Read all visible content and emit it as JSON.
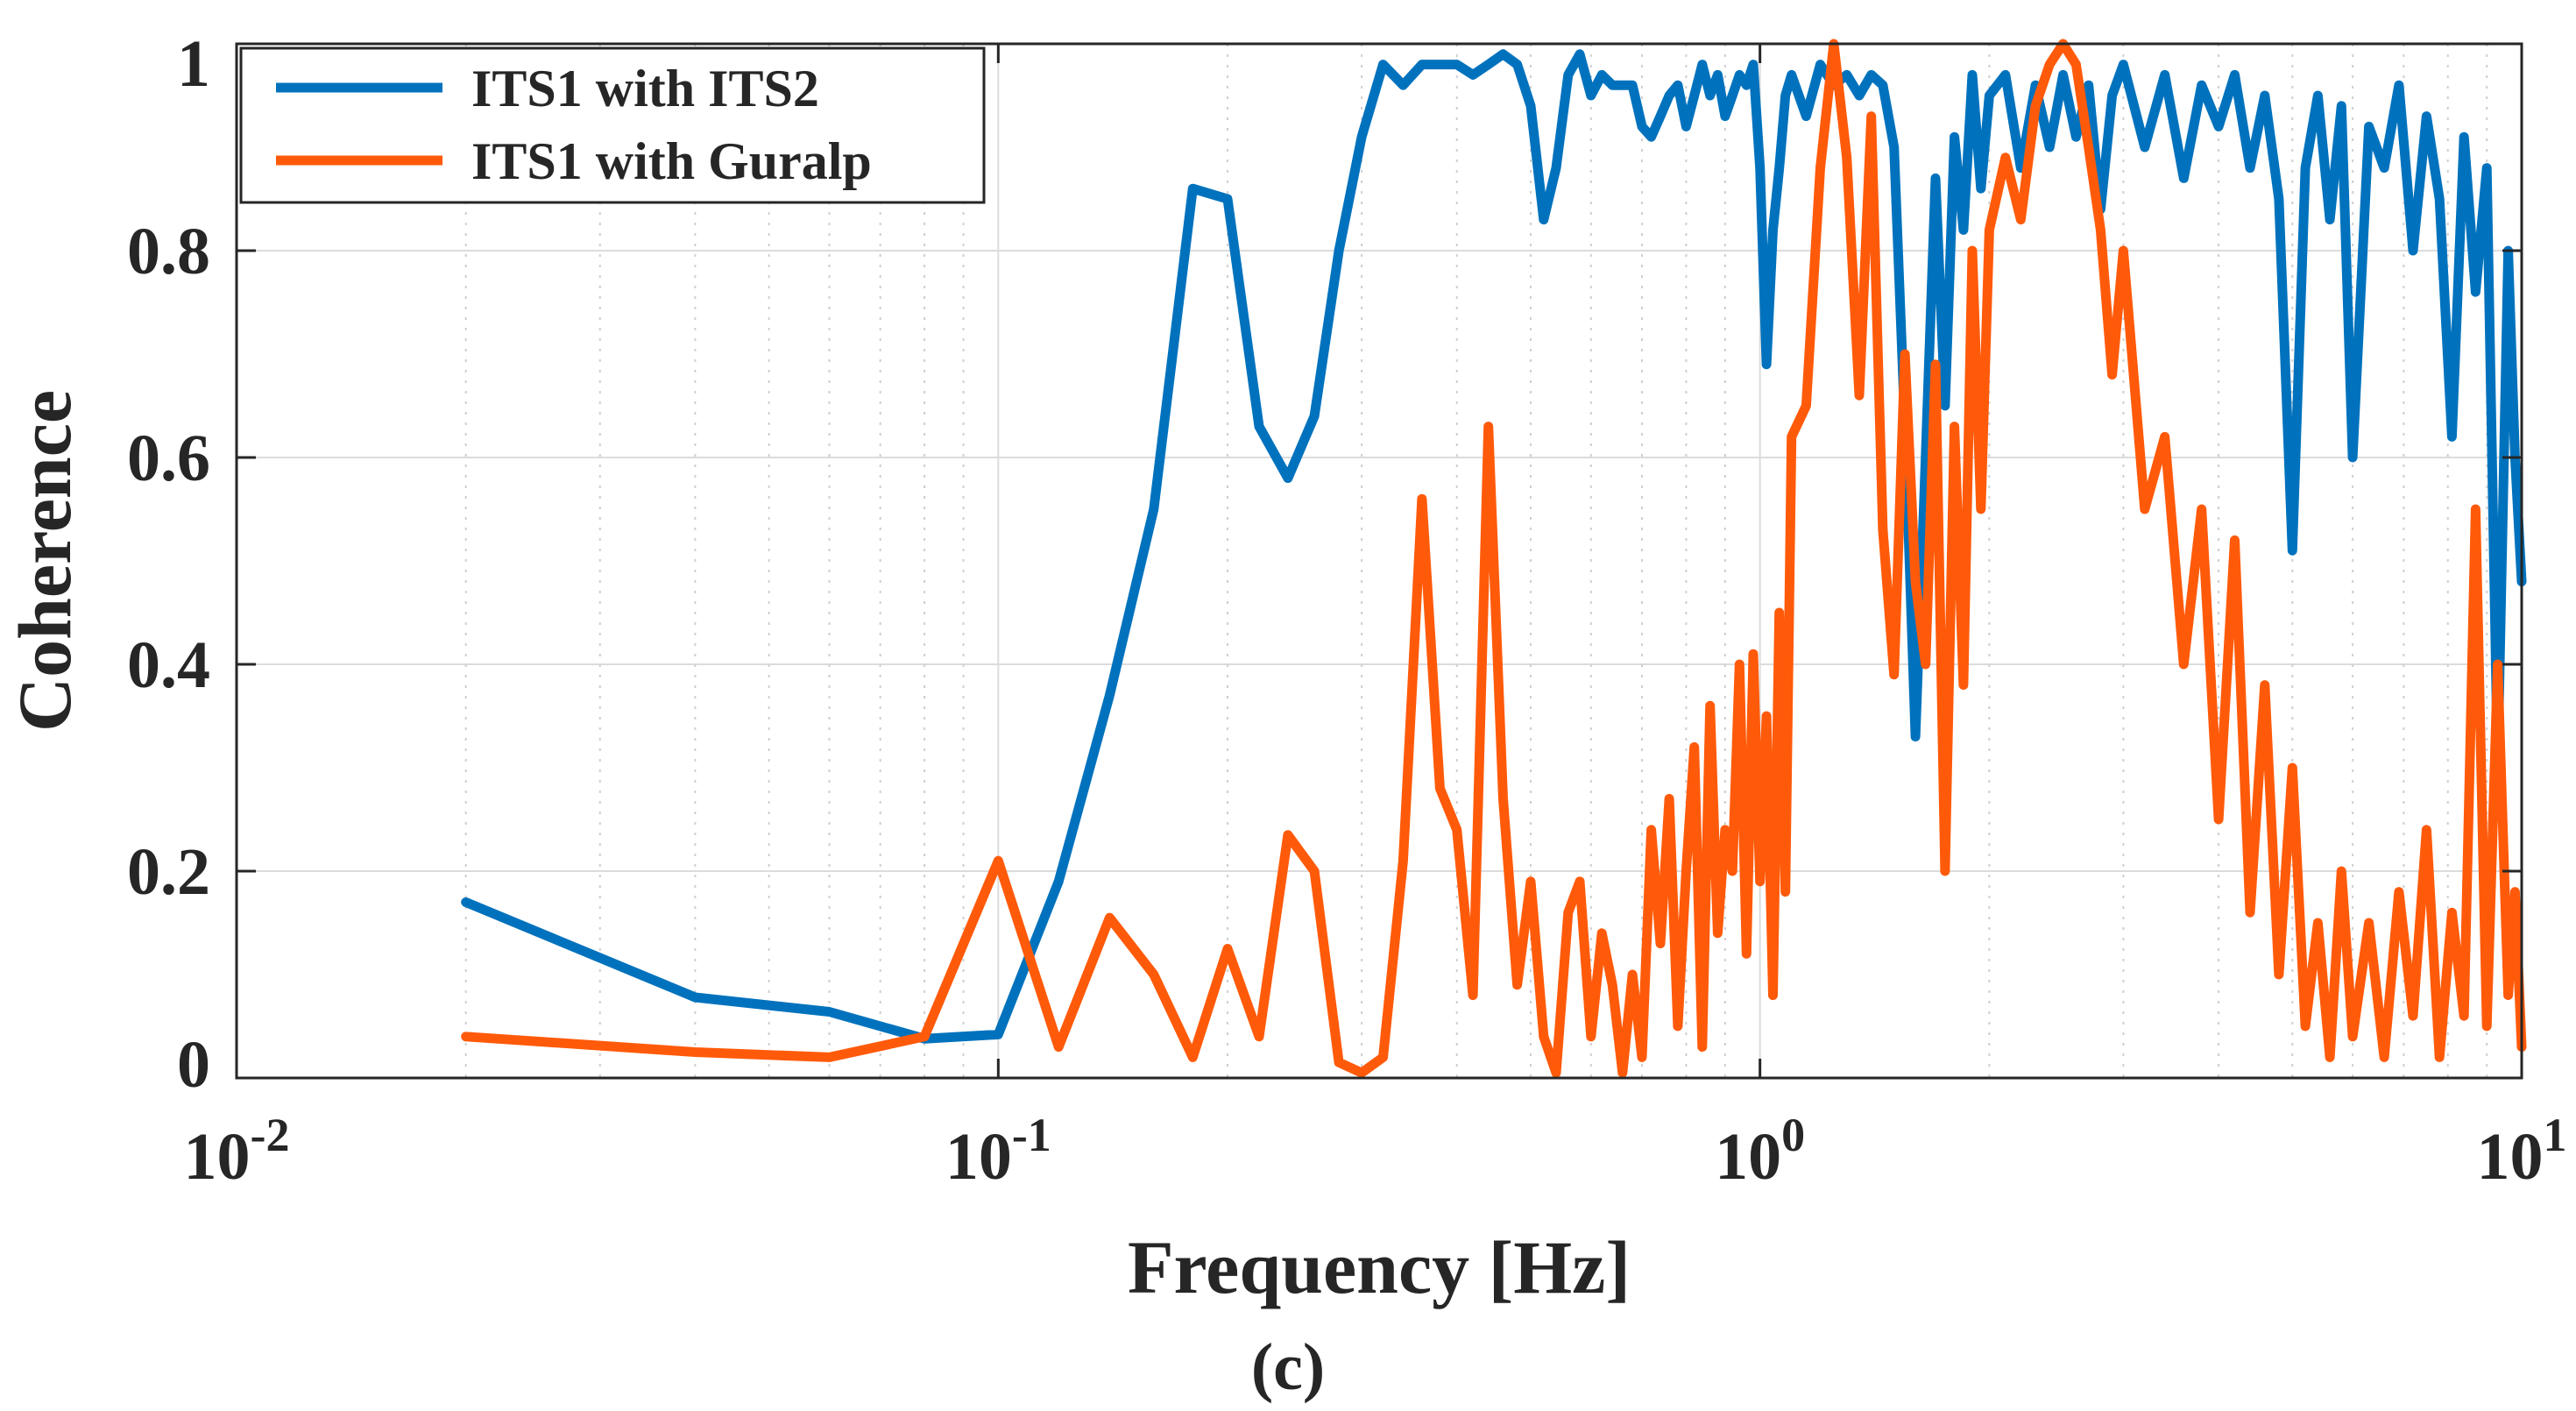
{
  "chart_data": {
    "type": "line",
    "xscale": "log",
    "xlim": [
      0.01,
      10
    ],
    "ylim": [
      0,
      1
    ],
    "xlabel": "Frequency [Hz]",
    "ylabel": "Coherence",
    "panel_label": "(c)",
    "grid": true,
    "legend_position": "top-left",
    "x_ticks": [
      {
        "value": 0.01,
        "base": "10",
        "exp": "-2"
      },
      {
        "value": 0.1,
        "base": "10",
        "exp": "-1"
      },
      {
        "value": 1,
        "base": "10",
        "exp": "0"
      },
      {
        "value": 10,
        "base": "10",
        "exp": "1"
      }
    ],
    "y_ticks": [
      {
        "value": 0,
        "label": "0"
      },
      {
        "value": 0.2,
        "label": "0.2"
      },
      {
        "value": 0.4,
        "label": "0.4"
      },
      {
        "value": 0.6,
        "label": "0.6"
      },
      {
        "value": 0.8,
        "label": "0.8"
      },
      {
        "value": 1,
        "label": "1"
      }
    ],
    "series": [
      {
        "name": "ITS1 with ITS2",
        "color": "#0072bd",
        "x": [
          0.02,
          0.04,
          0.06,
          0.08,
          0.1,
          0.12,
          0.14,
          0.16,
          0.18,
          0.2,
          0.22,
          0.24,
          0.26,
          0.28,
          0.3,
          0.32,
          0.34,
          0.36,
          0.38,
          0.4,
          0.42,
          0.44,
          0.46,
          0.48,
          0.5,
          0.52,
          0.54,
          0.56,
          0.58,
          0.6,
          0.62,
          0.64,
          0.66,
          0.68,
          0.7,
          0.72,
          0.74,
          0.76,
          0.78,
          0.8,
          0.82,
          0.84,
          0.86,
          0.88,
          0.9,
          0.92,
          0.94,
          0.96,
          0.98,
          1.0,
          1.02,
          1.04,
          1.06,
          1.08,
          1.1,
          1.15,
          1.2,
          1.25,
          1.3,
          1.35,
          1.4,
          1.45,
          1.5,
          1.55,
          1.6,
          1.65,
          1.7,
          1.75,
          1.8,
          1.85,
          1.9,
          1.95,
          2.0,
          2.1,
          2.2,
          2.3,
          2.4,
          2.5,
          2.6,
          2.7,
          2.8,
          2.9,
          3.0,
          3.2,
          3.4,
          3.6,
          3.8,
          4.0,
          4.2,
          4.4,
          4.6,
          4.8,
          5.0,
          5.2,
          5.4,
          5.6,
          5.8,
          6.0,
          6.3,
          6.6,
          6.9,
          7.2,
          7.5,
          7.8,
          8.1,
          8.4,
          8.7,
          9.0,
          9.3,
          9.6,
          9.8,
          10.0
        ],
        "values": [
          0.17,
          0.078,
          0.064,
          0.038,
          0.042,
          0.19,
          0.37,
          0.55,
          0.86,
          0.85,
          0.63,
          0.58,
          0.64,
          0.8,
          0.91,
          0.98,
          0.96,
          0.98,
          0.98,
          0.98,
          0.97,
          0.98,
          0.99,
          0.98,
          0.94,
          0.83,
          0.88,
          0.97,
          0.99,
          0.95,
          0.97,
          0.96,
          0.96,
          0.96,
          0.92,
          0.91,
          0.93,
          0.95,
          0.96,
          0.92,
          0.95,
          0.98,
          0.95,
          0.97,
          0.93,
          0.95,
          0.97,
          0.96,
          0.98,
          0.88,
          0.69,
          0.82,
          0.88,
          0.95,
          0.97,
          0.93,
          0.98,
          0.96,
          0.97,
          0.95,
          0.97,
          0.96,
          0.9,
          0.63,
          0.33,
          0.6,
          0.87,
          0.65,
          0.91,
          0.82,
          0.97,
          0.86,
          0.95,
          0.97,
          0.88,
          0.96,
          0.9,
          0.97,
          0.91,
          0.96,
          0.84,
          0.95,
          0.98,
          0.9,
          0.97,
          0.87,
          0.96,
          0.92,
          0.97,
          0.88,
          0.95,
          0.85,
          0.51,
          0.88,
          0.95,
          0.83,
          0.94,
          0.6,
          0.92,
          0.88,
          0.96,
          0.8,
          0.93,
          0.85,
          0.62,
          0.91,
          0.76,
          0.88,
          0.3,
          0.8,
          0.6,
          0.48
        ]
      },
      {
        "name": "ITS1 with Guralp",
        "color": "#ff5a0a",
        "x": [
          0.02,
          0.04,
          0.06,
          0.08,
          0.1,
          0.12,
          0.14,
          0.16,
          0.18,
          0.2,
          0.22,
          0.24,
          0.26,
          0.28,
          0.3,
          0.32,
          0.34,
          0.36,
          0.38,
          0.4,
          0.42,
          0.44,
          0.46,
          0.48,
          0.5,
          0.52,
          0.54,
          0.56,
          0.58,
          0.6,
          0.62,
          0.64,
          0.66,
          0.68,
          0.7,
          0.72,
          0.74,
          0.76,
          0.78,
          0.8,
          0.82,
          0.84,
          0.86,
          0.88,
          0.9,
          0.92,
          0.94,
          0.96,
          0.98,
          1.0,
          1.02,
          1.04,
          1.06,
          1.08,
          1.1,
          1.15,
          1.2,
          1.25,
          1.3,
          1.35,
          1.4,
          1.45,
          1.5,
          1.55,
          1.6,
          1.65,
          1.7,
          1.75,
          1.8,
          1.85,
          1.9,
          1.95,
          2.0,
          2.1,
          2.2,
          2.3,
          2.4,
          2.5,
          2.6,
          2.7,
          2.8,
          2.9,
          3.0,
          3.2,
          3.4,
          3.6,
          3.8,
          4.0,
          4.2,
          4.4,
          4.6,
          4.8,
          5.0,
          5.2,
          5.4,
          5.6,
          5.8,
          6.0,
          6.3,
          6.6,
          6.9,
          7.2,
          7.5,
          7.8,
          8.1,
          8.4,
          8.7,
          9.0,
          9.3,
          9.6,
          9.8,
          10.0
        ],
        "values": [
          0.04,
          0.025,
          0.02,
          0.04,
          0.21,
          0.03,
          0.155,
          0.1,
          0.02,
          0.125,
          0.04,
          0.235,
          0.2,
          0.015,
          0.005,
          0.02,
          0.21,
          0.56,
          0.28,
          0.24,
          0.08,
          0.63,
          0.27,
          0.09,
          0.19,
          0.04,
          0.005,
          0.16,
          0.19,
          0.04,
          0.14,
          0.09,
          0.005,
          0.1,
          0.02,
          0.24,
          0.13,
          0.27,
          0.05,
          0.2,
          0.32,
          0.03,
          0.36,
          0.14,
          0.24,
          0.2,
          0.4,
          0.12,
          0.41,
          0.19,
          0.35,
          0.08,
          0.45,
          0.18,
          0.62,
          0.65,
          0.88,
          1.0,
          0.89,
          0.66,
          0.93,
          0.53,
          0.39,
          0.7,
          0.48,
          0.4,
          0.69,
          0.2,
          0.63,
          0.38,
          0.8,
          0.55,
          0.82,
          0.89,
          0.83,
          0.94,
          0.98,
          1.0,
          0.98,
          0.9,
          0.82,
          0.68,
          0.8,
          0.55,
          0.62,
          0.4,
          0.55,
          0.25,
          0.52,
          0.16,
          0.38,
          0.1,
          0.3,
          0.05,
          0.15,
          0.02,
          0.2,
          0.04,
          0.15,
          0.02,
          0.18,
          0.06,
          0.24,
          0.02,
          0.16,
          0.06,
          0.55,
          0.05,
          0.4,
          0.08,
          0.18,
          0.03
        ]
      }
    ]
  }
}
